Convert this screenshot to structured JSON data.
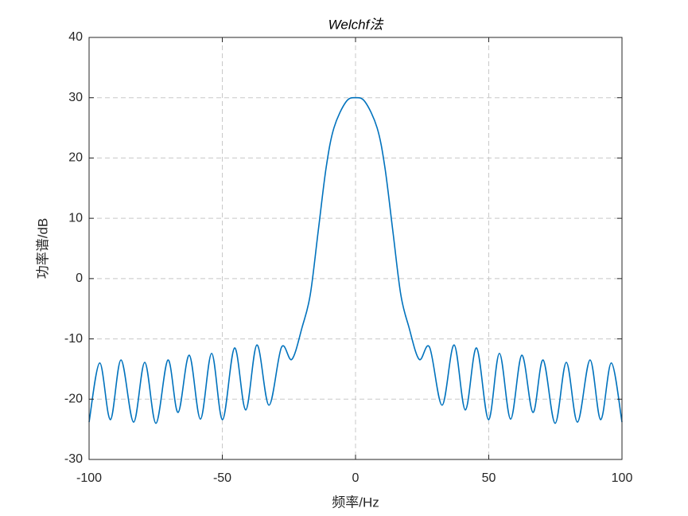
{
  "chart_data": {
    "type": "line",
    "title": "Welchf法",
    "xlabel": "频率/Hz",
    "ylabel": "功率谱/dB",
    "x": [
      -100,
      -96,
      -92,
      -88,
      -83.3,
      -79.1,
      -74.9,
      -70.4,
      -66.6,
      -62.4,
      -58.2,
      -54,
      -49.9,
      -45.4,
      -41.2,
      -37,
      -32.5,
      -27.8,
      -23.9,
      -20,
      -17,
      -14,
      -11,
      -8.1,
      -3.6,
      0,
      3.6,
      8.1,
      11,
      14,
      17,
      20,
      23.9,
      27.8,
      32.5,
      37,
      41.2,
      45.4,
      49.9,
      54,
      58.2,
      62.4,
      66.6,
      70.4,
      74.9,
      79.1,
      83.3,
      88,
      92,
      96,
      100
    ],
    "values": [
      -23.8,
      -14,
      -23.4,
      -13.5,
      -23.8,
      -13.9,
      -24,
      -13.5,
      -22.2,
      -12.7,
      -23.3,
      -12.4,
      -23.4,
      -11.5,
      -21.8,
      -11,
      -21,
      -11.4,
      -13.4,
      -8,
      -2.7,
      7.9,
      18.5,
      25,
      29.3,
      30,
      29.3,
      25,
      18.5,
      7.9,
      -2.7,
      -8,
      -13.4,
      -11.4,
      -21,
      -11,
      -21.8,
      -11.5,
      -23.4,
      -12.4,
      -23.3,
      -12.7,
      -22.2,
      -13.5,
      -24,
      -13.9,
      -23.8,
      -13.5,
      -23.4,
      -14,
      -23.8
    ],
    "color": "#0072bd",
    "xlim": [
      -100,
      100
    ],
    "xticks": [
      -100,
      -50,
      0,
      50,
      100
    ],
    "ylim": [
      -30,
      40
    ],
    "yticks": [
      -30,
      -20,
      -10,
      0,
      10,
      20,
      30,
      40
    ],
    "grid": true
  }
}
